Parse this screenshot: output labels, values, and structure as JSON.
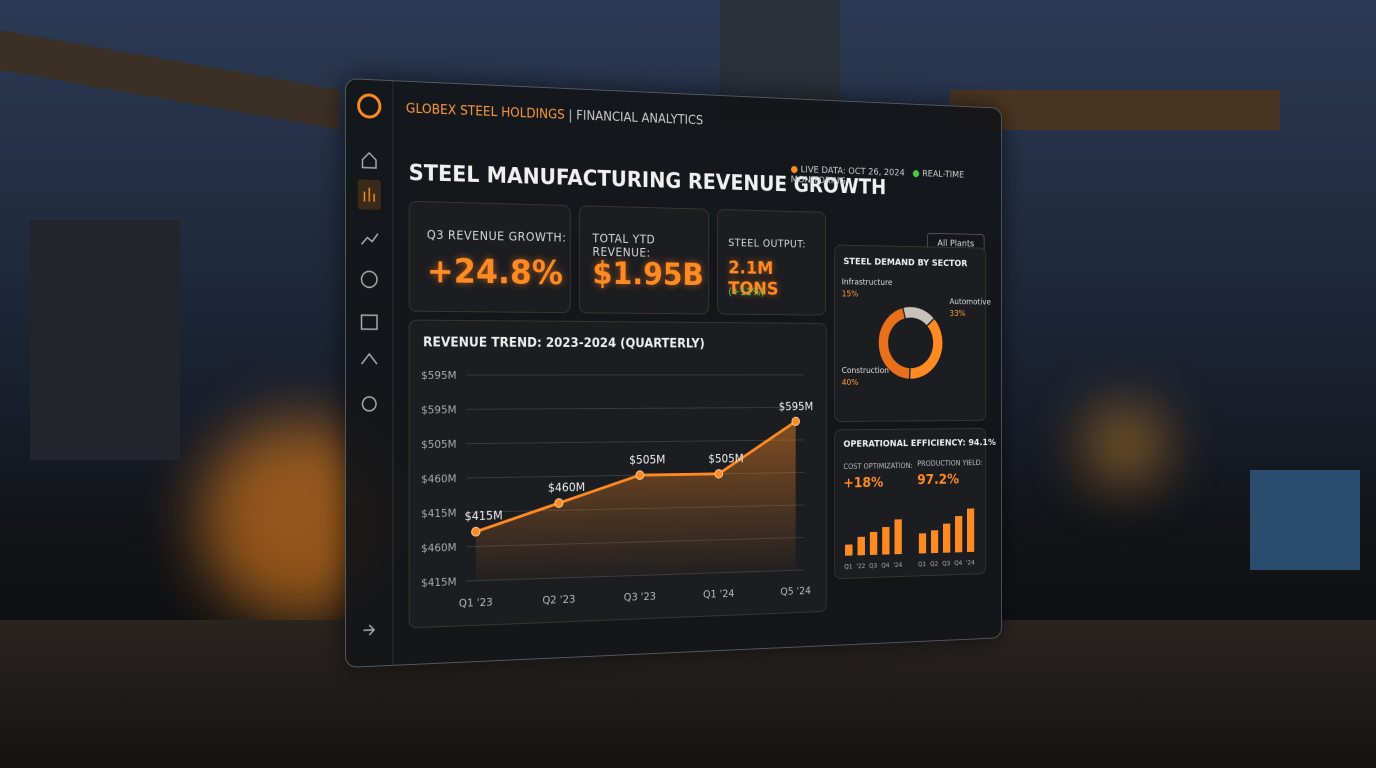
{
  "header": {
    "brand": "GLOBEX STEEL HOLDINGS",
    "section": "| FINANCIAL ANALYTICS",
    "title": "STEEL MANUFACTURING REVENUE GROWTH",
    "live": "LIVE DATA: OCT 26, 2024",
    "monitoring": "REAL-TIME MONITORING",
    "filter": "All Plants"
  },
  "kpis": [
    {
      "label": "Q3 REVENUE GROWTH:",
      "value": "+24.8%"
    },
    {
      "label": "TOTAL YTD REVENUE:",
      "value": "$1.95B"
    },
    {
      "label": "STEEL OUTPUT:",
      "value": "2.1M TONS",
      "note": "(+11%)"
    }
  ],
  "revenue_trend": {
    "title": "REVENUE TREND: 2023-2024 (QUARTERLY)",
    "y_labels": [
      "$595M",
      "$595M",
      "$505M",
      "$460M",
      "$415M",
      "$460M",
      "$415M"
    ],
    "x_labels": [
      "Q1 '23",
      "Q2 '23",
      "Q3 '23",
      "Q1 '24",
      "Q5 '24"
    ],
    "values": [
      415,
      460,
      505,
      505,
      595
    ],
    "value_labels": [
      "$415M",
      "$460M",
      "$505M",
      "$505M",
      "$595M"
    ]
  },
  "sector": {
    "title": "STEEL DEMAND BY SECTOR",
    "sectors": [
      {
        "name": "Infrastructure",
        "value": 15,
        "label": "15%"
      },
      {
        "name": "Automotive",
        "value": 33,
        "label": "33%"
      },
      {
        "name": "Construction",
        "value": 40,
        "label": "40%"
      }
    ]
  },
  "efficiency": {
    "title": "OPERATIONAL EFFICIENCY: 94.1%",
    "cost_label": "COST OPTIMIZATION:",
    "cost_value": "+18%",
    "yield_label": "PRODUCTION YIELD:",
    "yield_value": "97.2%",
    "cost_x_labels": [
      "Q1",
      "'22",
      "Q3",
      "Q4",
      "'24"
    ],
    "yield_x_labels": [
      "Q1",
      "Q2",
      "Q3",
      "Q4",
      "'24"
    ]
  }
}
